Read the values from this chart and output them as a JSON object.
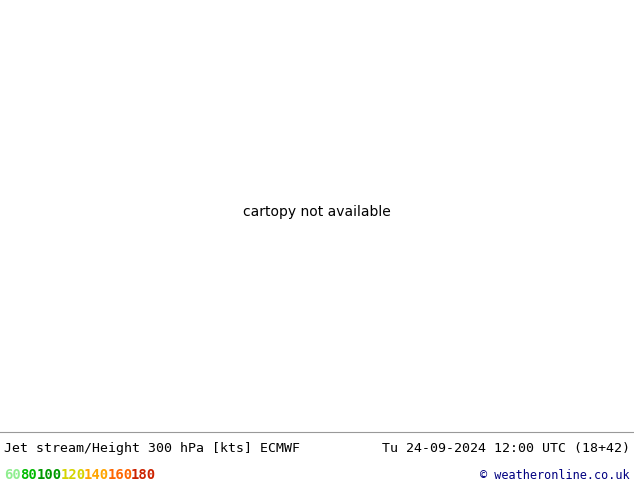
{
  "title_left": "Jet stream/Height 300 hPa [kts] ECMWF",
  "title_right": "Tu 24-09-2024 12:00 UTC (18+42)",
  "copyright": "© weatheronline.co.uk",
  "legend_values": [
    60,
    80,
    100,
    120,
    140,
    160,
    180
  ],
  "legend_colors": [
    "#90ee90",
    "#00bb00",
    "#009900",
    "#d4d400",
    "#ffa500",
    "#ff6600",
    "#cc2200"
  ],
  "figsize": [
    6.34,
    4.9
  ],
  "dpi": 100,
  "map_extent": [
    -175,
    -50,
    20,
    80
  ],
  "ocean_color": "#e0e8e0",
  "land_color": "#c8ddb0",
  "bg_bottom_color": "#f0f0f0"
}
